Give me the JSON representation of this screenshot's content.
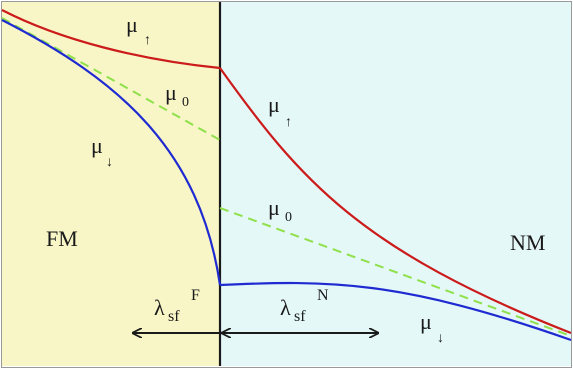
{
  "regions": {
    "left": {
      "label": "FM",
      "color": "#f8f6c7"
    },
    "right": {
      "label": "NM",
      "color": "#e4f8f8"
    }
  },
  "potentials": {
    "up": {
      "symbol": "μ",
      "arrow": "↑",
      "color": "#cc1b1b"
    },
    "down": {
      "symbol": "μ",
      "arrow": "↓",
      "color": "#1f2bd1"
    },
    "zero": {
      "symbol": "μ",
      "subscript": "0",
      "color": "#8fe04a"
    }
  },
  "lengths": {
    "ferromagnet": {
      "symbol": "λ",
      "subscript": "sf",
      "superscript": "F"
    },
    "normal_metal": {
      "symbol": "λ",
      "subscript": "sf",
      "superscript": "N"
    }
  },
  "colors": {
    "interface": "#1a1a1a",
    "arrow": "#1a1a1a",
    "border": "#9a9a9a"
  }
}
